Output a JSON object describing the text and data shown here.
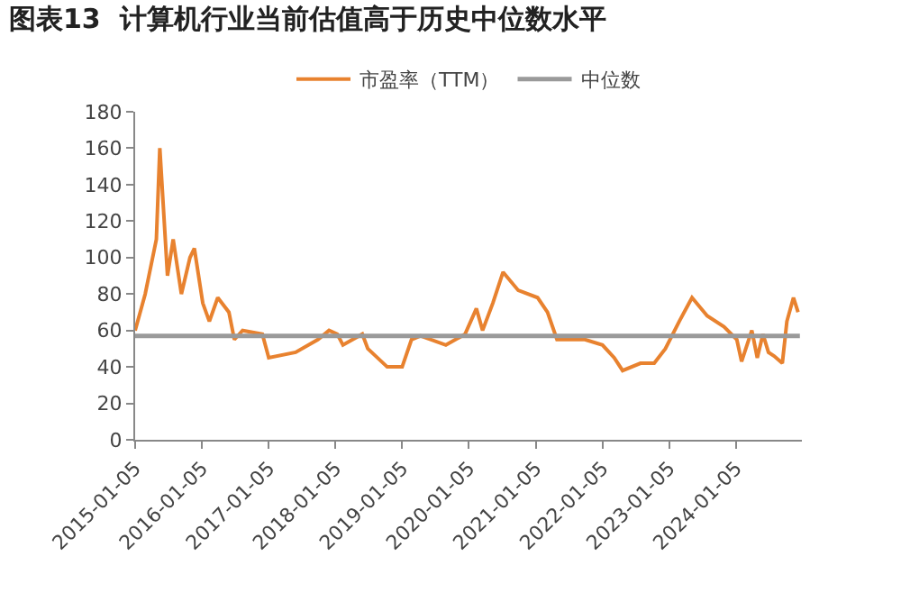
{
  "chart_data": {
    "type": "line",
    "title": "图表13  计算机行业当前估值高于历史中位数水平",
    "series": [
      {
        "name": "市盈率（TTM）",
        "color": "#e8822f",
        "x": [
          "2015-01-05",
          "2015-03-01",
          "2015-05-01",
          "2015-05-20",
          "2015-07-01",
          "2015-08-01",
          "2015-09-15",
          "2015-11-01",
          "2015-11-25",
          "2016-01-10",
          "2016-02-15",
          "2016-04-01",
          "2016-06-01",
          "2016-07-01",
          "2016-08-15",
          "2016-12-01",
          "2017-01-05",
          "2017-06-01",
          "2017-10-01",
          "2017-12-01",
          "2018-01-15",
          "2018-02-15",
          "2018-06-01",
          "2018-07-01",
          "2018-10-15",
          "2019-01-05",
          "2019-02-25",
          "2019-04-15",
          "2019-09-01",
          "2019-12-15",
          "2020-02-15",
          "2020-03-20",
          "2020-05-15",
          "2020-07-10",
          "2020-10-01",
          "2021-01-15",
          "2021-03-10",
          "2021-05-01",
          "2021-10-01",
          "2022-01-05",
          "2022-03-10",
          "2022-04-25",
          "2022-08-01",
          "2022-10-15",
          "2022-12-15",
          "2023-03-01",
          "2023-05-10",
          "2023-08-01",
          "2023-11-01",
          "2024-01-10",
          "2024-02-05",
          "2024-04-01",
          "2024-05-01",
          "2024-06-01",
          "2024-07-01",
          "2024-08-01",
          "2024-09-15",
          "2024-10-10",
          "2024-11-15",
          "2024-12-10"
        ],
        "values": [
          60,
          80,
          110,
          160,
          90,
          110,
          80,
          100,
          105,
          75,
          65,
          78,
          70,
          55,
          60,
          58,
          45,
          48,
          55,
          60,
          58,
          52,
          58,
          50,
          40,
          40,
          55,
          57,
          52,
          58,
          72,
          60,
          75,
          92,
          82,
          78,
          70,
          55,
          55,
          52,
          45,
          38,
          42,
          42,
          50,
          65,
          78,
          68,
          62,
          55,
          43,
          60,
          45,
          58,
          48,
          46,
          42,
          65,
          78,
          70
        ]
      },
      {
        "name": "中位数",
        "color": "#9a9a9a",
        "x": [
          "2015-01-05",
          "2024-12-20"
        ],
        "values": [
          57,
          57
        ]
      }
    ],
    "xlim": [
      "2015-01-05",
      "2024-12-31"
    ],
    "xticks": [
      "2015-01-05",
      "2016-01-05",
      "2017-01-05",
      "2018-01-05",
      "2019-01-05",
      "2020-01-05",
      "2021-01-05",
      "2022-01-05",
      "2023-01-05",
      "2024-01-05"
    ],
    "ylim": [
      0,
      180
    ],
    "yticks": [
      0,
      20,
      40,
      60,
      80,
      100,
      120,
      140,
      160,
      180
    ],
    "legend": "top",
    "marker": "none",
    "line_style": "solid"
  }
}
